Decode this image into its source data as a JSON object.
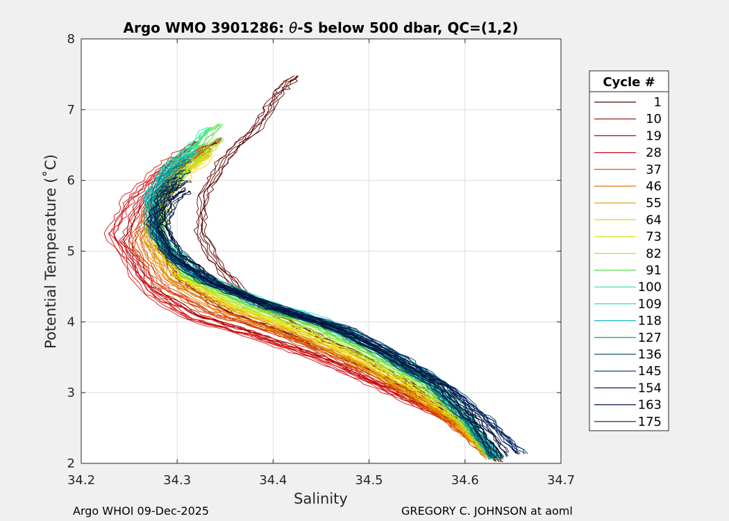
{
  "chart_data": {
    "type": "line",
    "title_prefix": "Argo WMO 3901286: ",
    "title_theta": "θ",
    "title_suffix": "-S below 500 dbar,  QC=(1,2)",
    "xlabel": "Salinity",
    "ylabel": "Potential Temperature (˚C)",
    "xlim": [
      34.2,
      34.7
    ],
    "ylim": [
      2,
      8
    ],
    "xticks": [
      "34.2",
      "34.3",
      "34.4",
      "34.5",
      "34.6",
      "34.7"
    ],
    "yticks": [
      "2",
      "3",
      "4",
      "5",
      "6",
      "7",
      "8"
    ],
    "grid": true,
    "legend_position": "right",
    "legend_title": "Cycle #",
    "legend_entries": [
      {
        "label": "1",
        "color": "#5a0000"
      },
      {
        "label": "10",
        "color": "#8a0000"
      },
      {
        "label": "19",
        "color": "#b80000"
      },
      {
        "label": "28",
        "color": "#d01010"
      },
      {
        "label": "37",
        "color": "#d83a00"
      },
      {
        "label": "46",
        "color": "#e07000"
      },
      {
        "label": "55",
        "color": "#e0a000"
      },
      {
        "label": "64",
        "color": "#f0d000"
      },
      {
        "label": "73",
        "color": "#d8e820"
      },
      {
        "label": "82",
        "color": "#9ae030"
      },
      {
        "label": "91",
        "color": "#50e040"
      },
      {
        "label": "100",
        "color": "#28e890"
      },
      {
        "label": "109",
        "color": "#20e0c0"
      },
      {
        "label": "118",
        "color": "#10b8c0"
      },
      {
        "label": "127",
        "color": "#0a8090"
      },
      {
        "label": "136",
        "color": "#0a4f70"
      },
      {
        "label": "145",
        "color": "#06306a"
      },
      {
        "label": "154",
        "color": "#051f50"
      },
      {
        "label": "163",
        "color": "#041840"
      },
      {
        "label": "175",
        "color": "#03123a"
      }
    ],
    "series": [
      {
        "name": "1",
        "color": "#5a0000",
        "s": [
          34.636,
          34.6,
          34.555,
          34.49,
          34.44,
          34.39,
          34.345,
          34.325,
          34.33,
          34.35,
          34.385,
          34.405,
          34.425
        ],
        "t": [
          2.03,
          2.55,
          3.05,
          3.55,
          3.85,
          4.2,
          4.75,
          5.3,
          5.8,
          6.3,
          6.75,
          7.2,
          7.48
        ]
      },
      {
        "name": "10",
        "color": "#8a0000",
        "s": [
          34.633,
          34.59,
          34.54,
          34.47,
          34.41,
          34.35,
          34.3,
          34.275,
          34.285,
          34.31,
          34.345
        ],
        "t": [
          2.05,
          2.6,
          3.05,
          3.5,
          3.85,
          4.15,
          4.6,
          5.2,
          5.8,
          6.3,
          6.6
        ]
      },
      {
        "name": "19",
        "color": "#b80000",
        "s": [
          34.632,
          34.585,
          34.53,
          34.46,
          34.39,
          34.32,
          34.27,
          34.245,
          34.26,
          34.29,
          34.32
        ],
        "t": [
          2.05,
          2.6,
          3.0,
          3.45,
          3.8,
          4.1,
          4.5,
          5.15,
          5.7,
          6.2,
          6.55
        ]
      },
      {
        "name": "28",
        "color": "#d01010",
        "s": [
          34.63,
          34.58,
          34.52,
          34.45,
          34.38,
          34.31,
          34.265,
          34.23,
          34.25,
          34.28,
          34.31
        ],
        "t": [
          2.06,
          2.62,
          3.0,
          3.45,
          3.78,
          4.05,
          4.45,
          5.25,
          5.75,
          6.15,
          6.45
        ]
      },
      {
        "name": "37",
        "color": "#d83a00",
        "s": [
          34.63,
          34.585,
          34.53,
          34.465,
          34.4,
          34.33,
          34.28,
          34.255,
          34.27,
          34.295,
          34.33
        ],
        "t": [
          2.07,
          2.6,
          3.05,
          3.5,
          3.85,
          4.15,
          4.55,
          5.1,
          5.65,
          6.1,
          6.5
        ]
      },
      {
        "name": "46",
        "color": "#e07000",
        "s": [
          34.628,
          34.585,
          34.535,
          34.475,
          34.41,
          34.345,
          34.29,
          34.265,
          34.275,
          34.3,
          34.335
        ],
        "t": [
          2.08,
          2.6,
          3.05,
          3.5,
          3.85,
          4.15,
          4.6,
          5.15,
          5.7,
          6.15,
          6.45
        ]
      },
      {
        "name": "55",
        "color": "#e0a000",
        "s": [
          34.628,
          34.59,
          34.54,
          34.48,
          34.42,
          34.355,
          34.295,
          34.27,
          34.28,
          34.305,
          34.335
        ],
        "t": [
          2.08,
          2.6,
          3.05,
          3.5,
          3.88,
          4.2,
          4.65,
          5.2,
          5.7,
          6.1,
          6.4
        ]
      },
      {
        "name": "64",
        "color": "#f0d000",
        "s": [
          34.628,
          34.592,
          34.545,
          34.485,
          34.425,
          34.36,
          34.3,
          34.275,
          34.285,
          34.31,
          34.335
        ],
        "t": [
          2.08,
          2.6,
          3.05,
          3.5,
          3.88,
          4.2,
          4.65,
          5.2,
          5.7,
          6.1,
          6.35
        ]
      },
      {
        "name": "73",
        "color": "#d8e820",
        "s": [
          34.629,
          34.595,
          34.55,
          34.49,
          34.43,
          34.365,
          34.305,
          34.28,
          34.285,
          34.31,
          34.34
        ],
        "t": [
          2.08,
          2.6,
          3.08,
          3.52,
          3.9,
          4.2,
          4.65,
          5.2,
          5.7,
          6.15,
          6.5
        ]
      },
      {
        "name": "82",
        "color": "#9ae030",
        "s": [
          34.63,
          34.597,
          34.555,
          34.495,
          34.44,
          34.37,
          34.31,
          34.28,
          34.285,
          34.31,
          34.345
        ],
        "t": [
          2.07,
          2.6,
          3.1,
          3.55,
          3.92,
          4.22,
          4.65,
          5.2,
          5.75,
          6.2,
          6.6
        ]
      },
      {
        "name": "91",
        "color": "#50e040",
        "s": [
          34.632,
          34.6,
          34.56,
          34.5,
          34.445,
          34.375,
          34.31,
          34.28,
          34.28,
          34.305,
          34.345
        ],
        "t": [
          2.06,
          2.6,
          3.12,
          3.58,
          3.95,
          4.25,
          4.65,
          5.2,
          5.75,
          6.25,
          6.8
        ]
      },
      {
        "name": "100",
        "color": "#28e890",
        "s": [
          34.632,
          34.602,
          34.565,
          34.51,
          34.455,
          34.385,
          34.315,
          34.28,
          34.275,
          34.3,
          34.335
        ],
        "t": [
          2.06,
          2.6,
          3.15,
          3.6,
          3.98,
          4.28,
          4.7,
          5.25,
          5.8,
          6.3,
          6.75
        ]
      },
      {
        "name": "109",
        "color": "#20e0c0",
        "s": [
          34.633,
          34.605,
          34.57,
          34.515,
          34.46,
          34.39,
          34.32,
          34.28,
          34.27,
          34.29,
          34.32
        ],
        "t": [
          2.06,
          2.62,
          3.2,
          3.62,
          4.0,
          4.3,
          4.7,
          5.25,
          5.8,
          6.2,
          6.5
        ]
      },
      {
        "name": "118",
        "color": "#10b8c0",
        "s": [
          34.632,
          34.603,
          34.565,
          34.51,
          34.455,
          34.385,
          34.315,
          34.275,
          34.27,
          34.29,
          34.32
        ],
        "t": [
          2.06,
          2.6,
          3.15,
          3.6,
          3.98,
          4.28,
          4.7,
          5.25,
          5.75,
          6.15,
          6.4
        ]
      },
      {
        "name": "127",
        "color": "#0a8090",
        "s": [
          34.631,
          34.6,
          34.56,
          34.505,
          34.45,
          34.38,
          34.31,
          34.275,
          34.27,
          34.285,
          34.31
        ],
        "t": [
          2.07,
          2.6,
          3.12,
          3.58,
          3.95,
          4.25,
          4.68,
          5.2,
          5.7,
          6.05,
          6.3
        ]
      },
      {
        "name": "136",
        "color": "#0a4f70",
        "s": [
          34.632,
          34.605,
          34.565,
          34.51,
          34.46,
          34.39,
          34.325,
          34.29,
          34.28,
          34.29,
          34.31
        ],
        "t": [
          2.07,
          2.6,
          3.12,
          3.58,
          3.95,
          4.25,
          4.65,
          5.15,
          5.6,
          5.95,
          6.15
        ]
      },
      {
        "name": "145",
        "color": "#06306a",
        "s": [
          34.658,
          34.625,
          34.585,
          34.535,
          34.48,
          34.41,
          34.345,
          34.29,
          34.27,
          34.28,
          34.3
        ],
        "t": [
          2.13,
          2.6,
          3.05,
          3.5,
          3.9,
          4.2,
          4.5,
          4.9,
          5.4,
          5.8,
          6.05
        ]
      },
      {
        "name": "154",
        "color": "#051f50",
        "s": [
          34.652,
          34.62,
          34.58,
          34.53,
          34.47,
          34.4,
          34.33,
          34.29,
          34.275,
          34.29,
          34.31
        ],
        "t": [
          2.15,
          2.62,
          3.1,
          3.5,
          3.88,
          4.2,
          4.55,
          4.95,
          5.45,
          5.85,
          6.0
        ]
      },
      {
        "name": "163",
        "color": "#041840",
        "s": [
          34.64,
          34.612,
          34.575,
          34.525,
          34.47,
          34.405,
          34.34,
          34.3,
          34.28,
          34.29,
          34.305
        ],
        "t": [
          2.1,
          2.6,
          3.1,
          3.52,
          3.9,
          4.2,
          4.55,
          4.95,
          5.4,
          5.75,
          5.9
        ]
      },
      {
        "name": "175",
        "color": "#03123a",
        "s": [
          34.635,
          34.607,
          34.572,
          34.52,
          34.465,
          34.4,
          34.34,
          34.3,
          34.285,
          34.295,
          34.31
        ],
        "t": [
          2.08,
          2.6,
          3.1,
          3.52,
          3.9,
          4.2,
          4.55,
          4.95,
          5.35,
          5.7,
          5.85
        ]
      }
    ]
  },
  "footer": {
    "left": "Argo WHOI 09-Dec-2025",
    "right": "GREGORY C. JOHNSON at aoml"
  }
}
